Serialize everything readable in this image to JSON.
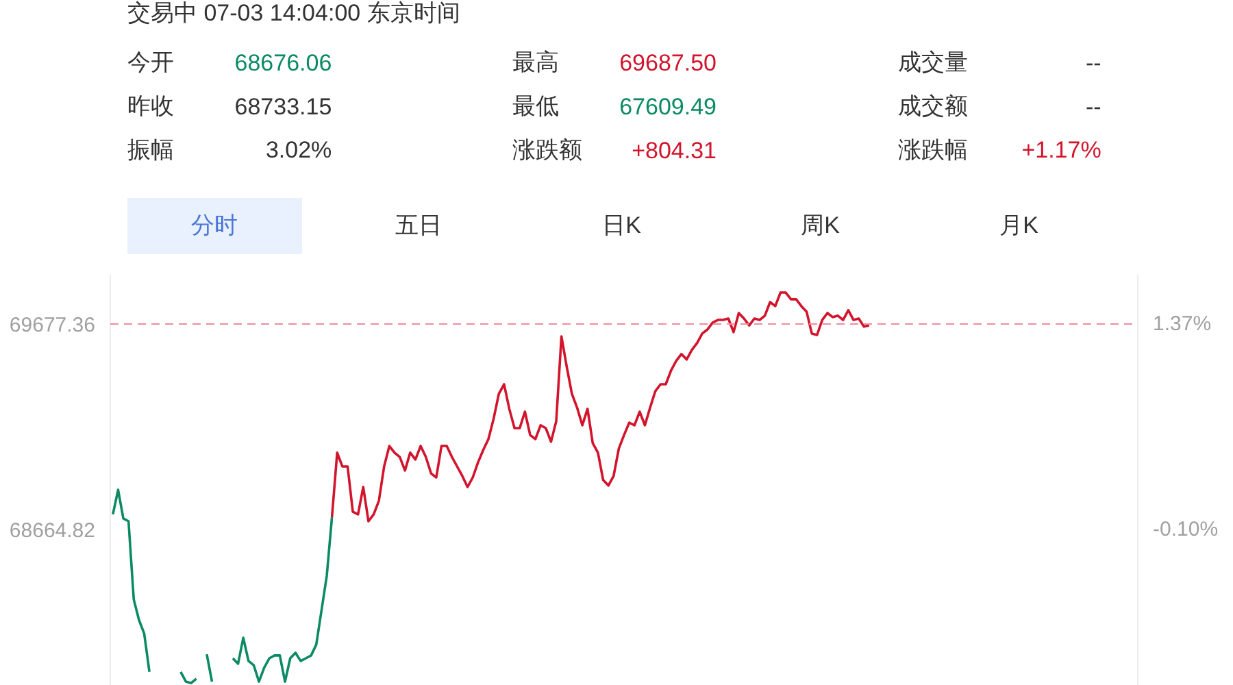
{
  "chart_data": [
    {
      "type": "other",
      "title": "交易中 07-03 14:04:00 东京时间",
      "annotations": [
        "今开",
        "68676.06",
        "最高",
        "69687.50",
        "成交量",
        "--",
        "昨收",
        "68733.15",
        "最低",
        "67609.49",
        "成交额",
        "--",
        "振幅",
        "3.02%",
        "涨跌额",
        "+804.31",
        "涨跌幅",
        "+1.17%",
        "分时",
        "五日",
        "日K",
        "周K",
        "月K"
      ]
    },
    {
      "type": "line",
      "tick_labels": "y",
      "grid": false,
      "categories": [
        null,
        null,
        null,
        null,
        null,
        null,
        null,
        null,
        null,
        null,
        null,
        null,
        null,
        null,
        null,
        null,
        null,
        null,
        null,
        null,
        null,
        null,
        null,
        null,
        null,
        null,
        null,
        null,
        null,
        null,
        null,
        null,
        null,
        null,
        null,
        null,
        null,
        null,
        null,
        null,
        null,
        null,
        null,
        null,
        null,
        null,
        null,
        null,
        null,
        null,
        null,
        null,
        null,
        null,
        null,
        null,
        null,
        null,
        null,
        null,
        null,
        null,
        null,
        null,
        null,
        null,
        null,
        null,
        null,
        null,
        null,
        null,
        null,
        null,
        null,
        null,
        null,
        null,
        null,
        null,
        null,
        null,
        null,
        null,
        null,
        null,
        null,
        null,
        null,
        null,
        null,
        null,
        null,
        null,
        null,
        null,
        null,
        null,
        null,
        null,
        null,
        null,
        null,
        null,
        null,
        null,
        null,
        null,
        null,
        null,
        null,
        null,
        null,
        null,
        null,
        null,
        null,
        null,
        null,
        null,
        null,
        null,
        null,
        null,
        null,
        null,
        null,
        null,
        null,
        null,
        null,
        null,
        null,
        null,
        null,
        null,
        null,
        null,
        null,
        null,
        null,
        null,
        null,
        null,
        null,
        null,
        null,
        null,
        null,
        null,
        null,
        null,
        null,
        null,
        null,
        null,
        null,
        null,
        null,
        null,
        null,
        null,
        null,
        null,
        null,
        null,
        null,
        null,
        null,
        null,
        null,
        null,
        null,
        null,
        null,
        null,
        null,
        null,
        null,
        null,
        null,
        null,
        null,
        null,
        null,
        null,
        null,
        null,
        null,
        null,
        null,
        null,
        null,
        null,
        null,
        null,
        null
      ],
      "series": [
        {
          "color": "#0b8a63",
          "values": [
            68739,
            68860,
            68719,
            68705,
            68320,
            68219,
            68152,
            67963,
            null,
            null,
            null,
            null,
            null,
            67963,
            67915,
            67908,
            67929,
            null,
            68050,
            67915,
            null,
            null,
            null,
            68030,
            68003,
            68131,
            68017,
            67996,
            67915,
            67983,
            68030,
            68044,
            68044,
            67915,
            68030,
            68057,
            68017,
            68030,
            68044,
            68098,
            68266,
            68435,
            68725,
            null,
            null,
            null,
            null,
            null,
            null,
            null,
            null,
            null,
            null,
            null,
            null,
            null,
            null,
            null,
            null,
            null,
            null,
            null,
            null,
            null,
            null,
            null,
            null,
            null,
            null,
            null,
            null,
            null,
            null,
            null,
            null,
            null,
            null,
            null,
            null,
            null,
            null,
            null,
            null,
            null,
            null,
            null,
            null,
            null,
            null,
            null,
            null,
            null,
            null,
            null,
            null,
            null,
            null,
            null,
            null,
            null,
            null,
            null,
            null,
            null,
            null,
            null,
            null,
            null,
            null,
            null,
            null,
            null,
            null,
            null,
            null,
            null,
            null,
            null,
            null,
            null,
            null,
            null,
            null,
            null,
            null,
            null,
            null,
            null,
            null,
            null,
            null,
            null,
            null,
            null,
            null,
            null,
            null,
            null,
            null,
            null,
            null,
            null,
            null,
            null,
            null,
            null,
            null,
            null,
            null,
            null,
            null,
            null,
            null,
            null,
            null,
            null,
            null,
            null,
            null,
            null,
            null,
            null,
            null,
            null,
            null,
            null,
            null,
            null,
            null,
            null,
            null,
            null,
            null,
            null,
            null,
            null,
            null,
            null,
            null,
            null,
            null,
            null,
            null,
            null,
            null,
            null,
            null,
            null,
            null,
            null,
            null,
            null,
            null,
            null,
            null,
            null,
            null
          ]
        },
        {
          "color": "#d2142c",
          "values": [
            null,
            null,
            null,
            null,
            null,
            null,
            null,
            null,
            null,
            null,
            null,
            null,
            null,
            null,
            null,
            null,
            null,
            null,
            null,
            null,
            null,
            null,
            null,
            null,
            null,
            null,
            null,
            null,
            null,
            null,
            null,
            null,
            null,
            null,
            null,
            null,
            null,
            null,
            null,
            null,
            null,
            null,
            68725,
            69043,
            68975,
            68975,
            68752,
            68739,
            68874,
            68705,
            68739,
            68806,
            68975,
            69076,
            69043,
            69022,
            68955,
            69043,
            69009,
            69076,
            69022,
            68941,
            68921,
            69076,
            69076,
            69022,
            68975,
            68928,
            68874,
            68921,
            68995,
            69056,
            69110,
            69211,
            69333,
            69380,
            69259,
            69164,
            69164,
            69245,
            69130,
            69110,
            69178,
            69164,
            69097,
            69198,
            69616,
            69468,
            69333,
            69265,
            69178,
            69259,
            69090,
            69043,
            68908,
            68881,
            68928,
            69063,
            69130,
            69191,
            69178,
            69245,
            69178,
            69265,
            69346,
            69380,
            69380,
            69447,
            69495,
            69529,
            69502,
            69549,
            69583,
            69630,
            69650,
            69684,
            69697,
            69697,
            69704,
            69637,
            69731,
            69704,
            69670,
            69704,
            69697,
            69718,
            69785,
            69765,
            69832,
            69832,
            69799,
            69799,
            69765,
            69738,
            69630,
            69623,
            69697,
            69731,
            69711,
            69718,
            69697,
            69745,
            69697,
            69704,
            69664,
            69670,
            null,
            null,
            null,
            null,
            null,
            null,
            null,
            null,
            null,
            null,
            null,
            null,
            null,
            null,
            null,
            null,
            null,
            null,
            null,
            null,
            null,
            null,
            null,
            null,
            null,
            null,
            null,
            null,
            null,
            null,
            null,
            null,
            null,
            null,
            null,
            null,
            null,
            null,
            null,
            null,
            null,
            null,
            null,
            null,
            null,
            null,
            null,
            null,
            null,
            null,
            null
          ]
        }
      ],
      "ylim": [
        67895,
        69920
      ],
      "yticks": [
        69677.36,
        68664.82
      ],
      "y2lim": [
        -1.2194,
        1.7268
      ],
      "y2ticks": [
        {
          "value": 1.3738,
          "label": "1.37%"
        },
        {
          "value": -0.0994,
          "label": "-0.10%"
        }
      ],
      "ref_lines": [
        {
          "axis": "y",
          "value": 69677.36,
          "label": null,
          "color": "#f28b9b",
          "line_style": "dashed"
        }
      ]
    }
  ]
}
